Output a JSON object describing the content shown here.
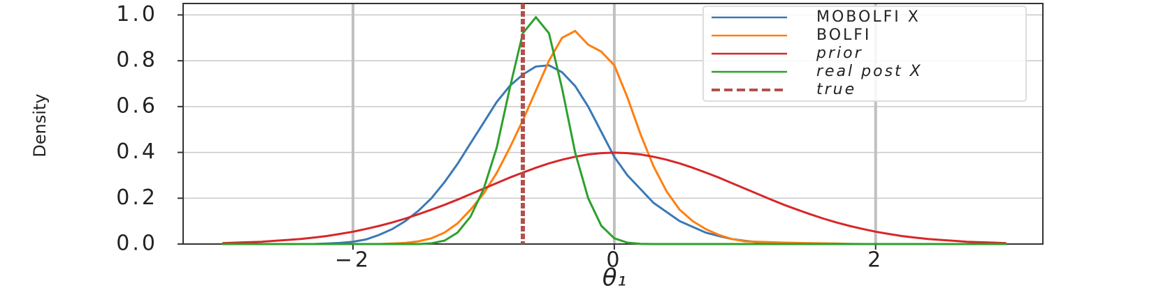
{
  "chart_data": {
    "type": "line",
    "xlabel": "θ₁",
    "ylabel": "Density",
    "x": [
      -3.0,
      -2.9,
      -2.8,
      -2.7,
      -2.6,
      -2.5,
      -2.4,
      -2.3,
      -2.2,
      -2.1,
      -2.0,
      -1.9,
      -1.8,
      -1.7,
      -1.6,
      -1.5,
      -1.4,
      -1.3,
      -1.2,
      -1.1,
      -1.0,
      -0.9,
      -0.8,
      -0.7,
      -0.6,
      -0.5,
      -0.4,
      -0.3,
      -0.2,
      -0.1,
      0.0,
      0.1,
      0.2,
      0.3,
      0.4,
      0.5,
      0.6,
      0.7,
      0.8,
      0.9,
      1.0,
      1.1,
      1.2,
      1.3,
      1.4,
      1.5,
      1.6,
      1.7,
      1.8,
      1.9,
      2.0,
      2.1,
      2.2,
      2.3,
      2.4,
      2.5,
      2.6,
      2.7,
      2.8,
      2.9,
      3.0
    ],
    "series": [
      {
        "name": "MOBOLFI X",
        "italic": false,
        "color": "#3a78b6",
        "values": [
          0,
          0,
          0,
          0,
          0,
          0,
          0,
          0,
          0.002,
          0.005,
          0.01,
          0.02,
          0.04,
          0.065,
          0.1,
          0.145,
          0.2,
          0.27,
          0.35,
          0.44,
          0.53,
          0.62,
          0.69,
          0.74,
          0.775,
          0.78,
          0.75,
          0.69,
          0.6,
          0.49,
          0.38,
          0.3,
          0.24,
          0.18,
          0.14,
          0.1,
          0.075,
          0.05,
          0.035,
          0.022,
          0.014,
          0.008,
          0.004,
          0.002,
          0,
          0,
          0,
          0,
          0,
          0,
          0,
          0,
          0,
          0,
          0,
          0,
          0,
          0,
          0,
          0,
          0
        ]
      },
      {
        "name": "BOLFI",
        "italic": false,
        "color": "#ff7f0e",
        "values": [
          0,
          0,
          0,
          0,
          0,
          0,
          0,
          0,
          0,
          0,
          0,
          0,
          0,
          0.002,
          0.005,
          0.012,
          0.025,
          0.05,
          0.09,
          0.15,
          0.22,
          0.31,
          0.42,
          0.54,
          0.67,
          0.8,
          0.9,
          0.93,
          0.87,
          0.84,
          0.78,
          0.64,
          0.48,
          0.34,
          0.23,
          0.15,
          0.1,
          0.065,
          0.04,
          0.022,
          0.012,
          0.01,
          0.008,
          0.006,
          0.005,
          0.004,
          0.003,
          0.002,
          0.001,
          0,
          0,
          0,
          0,
          0,
          0,
          0,
          0,
          0,
          0,
          0,
          0
        ]
      },
      {
        "name": "prior",
        "italic": true,
        "color": "#d62728",
        "values": [
          0.004,
          0.006,
          0.008,
          0.01,
          0.014,
          0.018,
          0.022,
          0.028,
          0.035,
          0.044,
          0.054,
          0.066,
          0.079,
          0.094,
          0.111,
          0.13,
          0.15,
          0.171,
          0.194,
          0.218,
          0.242,
          0.266,
          0.29,
          0.312,
          0.333,
          0.352,
          0.368,
          0.381,
          0.391,
          0.397,
          0.399,
          0.397,
          0.391,
          0.381,
          0.368,
          0.352,
          0.333,
          0.312,
          0.29,
          0.266,
          0.242,
          0.218,
          0.194,
          0.171,
          0.15,
          0.13,
          0.111,
          0.094,
          0.079,
          0.066,
          0.054,
          0.044,
          0.035,
          0.028,
          0.022,
          0.018,
          0.014,
          0.01,
          0.008,
          0.006,
          0.004
        ]
      },
      {
        "name": "real post X",
        "italic": true,
        "color": "#2ca02c",
        "values": [
          0,
          0,
          0,
          0,
          0,
          0,
          0,
          0,
          0,
          0,
          0,
          0,
          0,
          0,
          0,
          0,
          0.003,
          0.015,
          0.05,
          0.12,
          0.24,
          0.42,
          0.68,
          0.92,
          0.99,
          0.92,
          0.68,
          0.4,
          0.2,
          0.08,
          0.025,
          0.006,
          0.001,
          0,
          0,
          0,
          0,
          0,
          0,
          0,
          0,
          0,
          0,
          0,
          0,
          0,
          0,
          0,
          0,
          0,
          0,
          0,
          0,
          0,
          0,
          0,
          0,
          0,
          0,
          0,
          0
        ]
      }
    ],
    "vlines": [
      {
        "name": "true",
        "italic": true,
        "x": -0.7,
        "color": "#b2504c",
        "dashed": true
      }
    ],
    "xlim": [
      -3.3,
      3.28
    ],
    "ylim": [
      0,
      1.05
    ],
    "xticks": [
      {
        "value": -2,
        "label": "−2"
      },
      0,
      2
    ],
    "yticks": [
      {
        "value": 0,
        "label": "0.0"
      },
      0.2,
      0.4,
      0.6,
      0.8,
      {
        "value": 1,
        "label": "1.0"
      }
    ],
    "grid": true,
    "legend": "upper right"
  }
}
